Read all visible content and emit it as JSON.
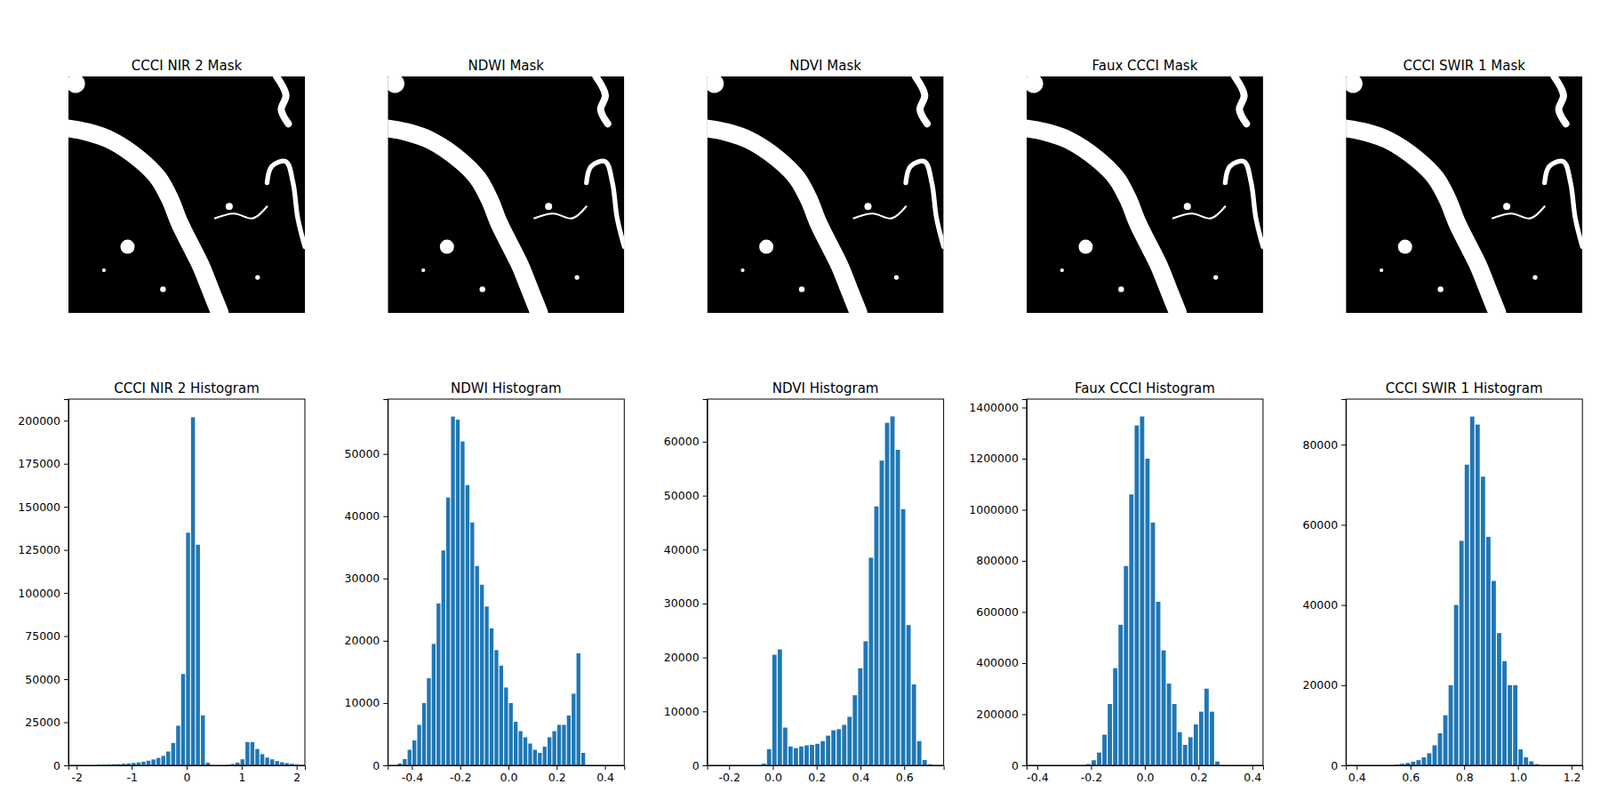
{
  "chart_data": [
    {
      "type": "image",
      "title": "CCCI NIR 2 Mask"
    },
    {
      "type": "image",
      "title": "NDWI Mask"
    },
    {
      "type": "image",
      "title": "NDVI Mask"
    },
    {
      "type": "image",
      "title": "Faux CCCI Mask"
    },
    {
      "type": "image",
      "title": "CCCI SWIR 1 Mask"
    },
    {
      "type": "histogram",
      "title": "CCCI NIR 2 Histogram",
      "color": "#1f77b4",
      "bins": [
        -2,
        -1.91,
        -1.82,
        -1.73,
        -1.64,
        -1.55,
        -1.46,
        -1.37,
        -1.28,
        -1.19,
        -1.1,
        -1.01,
        -0.92,
        -0.83,
        -0.74,
        -0.65,
        -0.56,
        -0.47,
        -0.38,
        -0.29,
        -0.2,
        -0.11,
        -0.02,
        0.07,
        0.16,
        0.25,
        0.34,
        0.43,
        0.52,
        0.61,
        0.7,
        0.79,
        0.88,
        0.97,
        1.06,
        1.15,
        1.24,
        1.33,
        1.42,
        1.51,
        1.6,
        1.69,
        1.78,
        1.87,
        1.96,
        2.05
      ],
      "values": [
        0,
        0,
        0,
        0,
        300,
        400,
        500,
        600,
        700,
        900,
        1100,
        1400,
        1700,
        2100,
        2700,
        3400,
        4300,
        5500,
        8000,
        13000,
        23000,
        53000,
        135000,
        202000,
        128000,
        29000,
        1500,
        0,
        0,
        0,
        200,
        800,
        1500,
        3500,
        13500,
        13500,
        9500,
        6500,
        4500,
        3500,
        2500,
        1800,
        1300,
        900,
        500
      ],
      "xlim": [
        -2.15,
        2.15
      ],
      "xticks": [
        -2,
        -1,
        0,
        1,
        2
      ],
      "ylim": [
        0,
        212500
      ],
      "yticks": [
        0,
        25000,
        50000,
        75000,
        100000,
        125000,
        150000,
        175000,
        200000
      ]
    },
    {
      "type": "histogram",
      "title": "NDWI Histogram",
      "color": "#1f77b4",
      "bins": [
        -0.48,
        -0.46,
        -0.44,
        -0.42,
        -0.4,
        -0.38,
        -0.36,
        -0.34,
        -0.32,
        -0.3,
        -0.28,
        -0.26,
        -0.24,
        -0.22,
        -0.2,
        -0.18,
        -0.16,
        -0.14,
        -0.12,
        -0.1,
        -0.08,
        -0.06,
        -0.04,
        -0.02,
        0,
        0.02,
        0.04,
        0.06,
        0.08,
        0.1,
        0.12,
        0.14,
        0.16,
        0.18,
        0.2,
        0.22,
        0.24,
        0.26,
        0.28,
        0.3,
        0.32
      ],
      "values": [
        0,
        300,
        1000,
        2500,
        4000,
        6500,
        10000,
        14000,
        19500,
        26000,
        34500,
        43000,
        56000,
        55500,
        52000,
        45000,
        39000,
        32000,
        29000,
        25500,
        22000,
        18500,
        16000,
        12500,
        10000,
        7000,
        5500,
        4500,
        3500,
        2500,
        2000,
        3000,
        4500,
        5500,
        6500,
        6500,
        8000,
        11500,
        18000,
        2000
      ],
      "xlim": [
        -0.5,
        0.48
      ],
      "xticks": [
        -0.4,
        -0.2,
        {
          "value": 0,
          "label": "0.0"
        },
        0.2,
        0.4
      ],
      "ylim": [
        0,
        58800
      ],
      "yticks": [
        0,
        10000,
        20000,
        30000,
        40000,
        50000
      ]
    },
    {
      "type": "histogram",
      "title": "NDVI Histogram",
      "color": "#1f77b4",
      "bins": [
        -0.25,
        -0.2255,
        -0.201,
        -0.1765,
        -0.152,
        -0.1275,
        -0.103,
        -0.0785,
        -0.054,
        -0.0295,
        -0.005,
        0.0195,
        0.044,
        0.0685,
        0.093,
        0.1175,
        0.142,
        0.1665,
        0.191,
        0.2155,
        0.24,
        0.2645,
        0.289,
        0.3135,
        0.338,
        0.3625,
        0.387,
        0.4115,
        0.436,
        0.4605,
        0.485,
        0.5095,
        0.534,
        0.5585,
        0.583,
        0.6075,
        0.632,
        0.6565,
        0.681,
        0.7055,
        0.73
      ],
      "values": [
        0,
        0,
        0,
        0,
        0,
        0,
        0,
        0,
        300,
        3000,
        20500,
        21500,
        7000,
        3500,
        3200,
        3500,
        3700,
        3800,
        4000,
        4500,
        5500,
        6500,
        6700,
        7500,
        9000,
        13000,
        18000,
        23000,
        38500,
        48000,
        56500,
        63500,
        64700,
        58500,
        47500,
        26000,
        15000,
        4500,
        1000,
        200
      ],
      "xlim": [
        -0.3,
        0.78
      ],
      "xticks": [
        -0.2,
        {
          "value": 0,
          "label": "0.0"
        },
        0.2,
        0.4,
        0.6
      ],
      "ylim": [
        0,
        67900
      ],
      "yticks": [
        0,
        10000,
        20000,
        30000,
        40000,
        50000,
        60000
      ]
    },
    {
      "type": "histogram",
      "title": "Faux CCCI Histogram",
      "color": "#1f77b4",
      "bins": [
        -0.4,
        -0.38,
        -0.36,
        -0.34,
        -0.32,
        -0.3,
        -0.28,
        -0.26,
        -0.24,
        -0.22,
        -0.2,
        -0.18,
        -0.16,
        -0.14,
        -0.12,
        -0.1,
        -0.08,
        -0.06,
        -0.04,
        -0.02,
        0,
        0.02,
        0.04,
        0.06,
        0.08,
        0.1,
        0.12,
        0.14,
        0.16,
        0.18,
        0.2,
        0.22,
        0.24,
        0.26,
        0.28,
        0.3,
        0.32,
        0.34,
        0.36,
        0.38,
        0.4
      ],
      "values": [
        0,
        0,
        0,
        0,
        0,
        0,
        0,
        0,
        0,
        5000,
        20000,
        50000,
        120000,
        240000,
        380000,
        550000,
        780000,
        1060000,
        1330000,
        1365000,
        1200000,
        950000,
        640000,
        450000,
        320000,
        240000,
        130000,
        80000,
        110000,
        160000,
        210000,
        300000,
        210000,
        15000,
        0,
        0,
        0,
        0,
        0,
        0
      ],
      "xlim": [
        -0.44,
        0.44
      ],
      "xticks": [
        -0.4,
        -0.2,
        {
          "value": 0,
          "label": "0.0"
        },
        0.2,
        0.4
      ],
      "ylim": [
        0,
        1433000
      ],
      "yticks": [
        0,
        200000,
        400000,
        600000,
        800000,
        1000000,
        1200000,
        1400000
      ]
    },
    {
      "type": "histogram",
      "title": "CCCI SWIR 1 Histogram",
      "color": "#1f77b4",
      "bins": [
        0.4,
        0.42,
        0.44,
        0.46,
        0.48,
        0.5,
        0.52,
        0.54,
        0.56,
        0.58,
        0.6,
        0.62,
        0.64,
        0.66,
        0.68,
        0.7,
        0.72,
        0.74,
        0.76,
        0.78,
        0.8,
        0.82,
        0.84,
        0.86,
        0.88,
        0.9,
        0.92,
        0.94,
        0.96,
        0.98,
        1,
        1.02,
        1.04,
        1.06,
        1.08,
        1.1,
        1.12,
        1.14,
        1.16,
        1.18,
        1.2
      ],
      "values": [
        0,
        0,
        0,
        0,
        0,
        0,
        0,
        200,
        400,
        600,
        900,
        1300,
        2000,
        3000,
        5000,
        8000,
        12500,
        20000,
        40000,
        56000,
        75000,
        87000,
        85000,
        72000,
        57000,
        46000,
        33000,
        26000,
        20000,
        20000,
        4000,
        2000,
        1000,
        300,
        0,
        0,
        0,
        0,
        0,
        0
      ],
      "xlim": [
        0.36,
        1.24
      ],
      "xticks": [
        0.4,
        0.6,
        0.8,
        {
          "value": 1,
          "label": "1.0"
        },
        1.2
      ],
      "ylim": [
        0,
        91350
      ],
      "yticks": [
        0,
        20000,
        40000,
        60000,
        80000
      ]
    }
  ]
}
